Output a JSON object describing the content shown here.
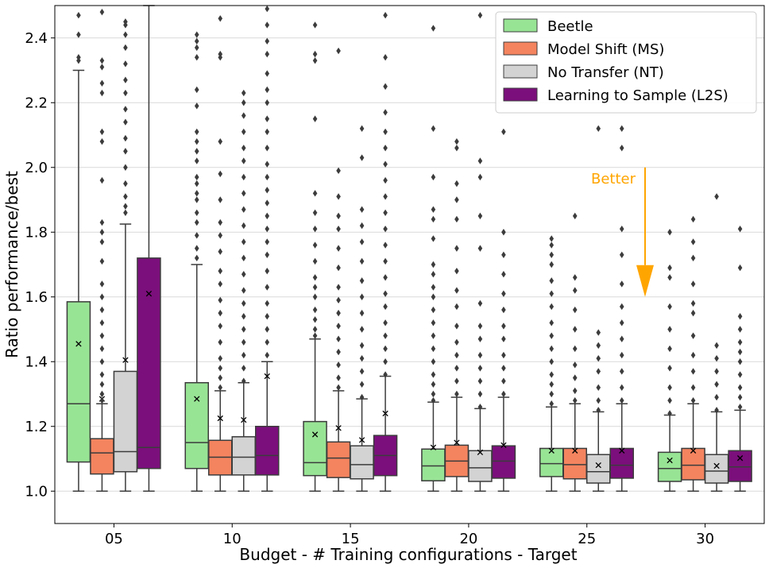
{
  "chart_data": {
    "type": "box",
    "xlabel": "Budget - # Training configurations - Target",
    "ylabel": "Ratio performance/best",
    "ylim": [
      0.9,
      2.5
    ],
    "yticks": [
      1.0,
      1.2,
      1.4,
      1.6,
      1.8,
      2.0,
      2.2,
      2.4
    ],
    "ytick_labels": [
      "1.0",
      "1.2",
      "1.4",
      "1.6",
      "1.8",
      "2.0",
      "2.2",
      "2.4"
    ],
    "grid": "horizontal",
    "legend_position": "top-right",
    "categories": [
      "05",
      "10",
      "15",
      "20",
      "25",
      "30"
    ],
    "colors": {
      "Beetle": "#98e495",
      "Model Shift (MS)": "#f4845f",
      "No Transfer (NT)": "#d3d3d3",
      "Learning to Sample (L2S)": "#7b0f7b",
      "annotation": "#ffa500"
    },
    "series": [
      {
        "name": "Beetle",
        "boxes": [
          {
            "whislo": 1.0,
            "q1": 1.09,
            "med": 1.27,
            "q3": 1.585,
            "whishi": 2.3,
            "mean": 1.455,
            "fliers": [
              2.33,
              2.34,
              2.41,
              2.47
            ]
          },
          {
            "whislo": 1.0,
            "q1": 1.07,
            "med": 1.15,
            "q3": 1.335,
            "whishi": 1.7,
            "mean": 1.285,
            "fliers": [
              1.72,
              1.75,
              1.79,
              1.83,
              1.86,
              1.9,
              1.92,
              1.95,
              1.97,
              2.02,
              2.05,
              2.08,
              2.11,
              2.19,
              2.24,
              2.34,
              2.37,
              2.39,
              2.41
            ]
          },
          {
            "whislo": 1.0,
            "q1": 1.048,
            "med": 1.088,
            "q3": 1.215,
            "whishi": 1.47,
            "mean": 1.175,
            "fliers": [
              1.48,
              1.5,
              1.53,
              1.56,
              1.6,
              1.63,
              1.66,
              1.71,
              1.76,
              1.81,
              1.86,
              1.92,
              2.15,
              2.33,
              2.35,
              2.44
            ]
          },
          {
            "whislo": 1.0,
            "q1": 1.032,
            "med": 1.078,
            "q3": 1.13,
            "whishi": 1.275,
            "mean": 1.135,
            "fliers": [
              1.28,
              1.3,
              1.33,
              1.36,
              1.4,
              1.44,
              1.48,
              1.52,
              1.56,
              1.6,
              1.63,
              1.67,
              1.7,
              1.78,
              1.84,
              1.87,
              1.97,
              2.12,
              2.43
            ]
          },
          {
            "whislo": 1.0,
            "q1": 1.045,
            "med": 1.085,
            "q3": 1.132,
            "whishi": 1.26,
            "mean": 1.125,
            "fliers": [
              1.27,
              1.3,
              1.33,
              1.36,
              1.4,
              1.44,
              1.48,
              1.52,
              1.57,
              1.61,
              1.65,
              1.7,
              1.73,
              1.76,
              1.78
            ]
          },
          {
            "whislo": 1.0,
            "q1": 1.03,
            "med": 1.07,
            "q3": 1.12,
            "whishi": 1.235,
            "mean": 1.095,
            "fliers": [
              1.24,
              1.28,
              1.32,
              1.38,
              1.44,
              1.5,
              1.57,
              1.66,
              1.69,
              1.8
            ]
          }
        ]
      },
      {
        "name": "Model Shift (MS)",
        "boxes": [
          {
            "whislo": 1.0,
            "q1": 1.053,
            "med": 1.118,
            "q3": 1.162,
            "whishi": 1.27,
            "mean": 1.285,
            "fliers": [
              1.28,
              1.3,
              1.33,
              1.36,
              1.4,
              1.44,
              1.48,
              1.52,
              1.56,
              1.6,
              1.64,
              1.71,
              1.77,
              1.8,
              1.83,
              1.96,
              2.08,
              2.11,
              2.23,
              2.26,
              2.31,
              2.33,
              2.48
            ]
          },
          {
            "whislo": 1.0,
            "q1": 1.05,
            "med": 1.105,
            "q3": 1.157,
            "whishi": 1.31,
            "mean": 1.225,
            "fliers": [
              1.32,
              1.35,
              1.38,
              1.41,
              1.46,
              1.51,
              1.55,
              1.59,
              1.64,
              1.68,
              1.74,
              1.79,
              1.83,
              1.9,
              1.98,
              2.08,
              2.34,
              2.35,
              2.46
            ]
          },
          {
            "whislo": 1.0,
            "q1": 1.042,
            "med": 1.102,
            "q3": 1.152,
            "whishi": 1.31,
            "mean": 1.195,
            "fliers": [
              1.32,
              1.35,
              1.39,
              1.43,
              1.47,
              1.51,
              1.55,
              1.59,
              1.63,
              1.69,
              1.75,
              1.81,
              1.85,
              1.91,
              1.99,
              2.36
            ]
          },
          {
            "whislo": 1.0,
            "q1": 1.045,
            "med": 1.093,
            "q3": 1.142,
            "whishi": 1.29,
            "mean": 1.15,
            "fliers": [
              1.3,
              1.34,
              1.38,
              1.42,
              1.46,
              1.51,
              1.57,
              1.62,
              1.68,
              1.75,
              1.84,
              1.9,
              1.95,
              2.06,
              2.08
            ]
          },
          {
            "whislo": 1.0,
            "q1": 1.038,
            "med": 1.082,
            "q3": 1.132,
            "whishi": 1.27,
            "mean": 1.125,
            "fliers": [
              1.28,
              1.31,
              1.35,
              1.39,
              1.44,
              1.5,
              1.56,
              1.62,
              1.66,
              1.85
            ]
          },
          {
            "whislo": 1.0,
            "q1": 1.035,
            "med": 1.08,
            "q3": 1.132,
            "whishi": 1.27,
            "mean": 1.125,
            "fliers": [
              1.28,
              1.32,
              1.37,
              1.42,
              1.48,
              1.55,
              1.58,
              1.64,
              1.72,
              1.77,
              1.84
            ]
          }
        ]
      },
      {
        "name": "No Transfer (NT)",
        "boxes": [
          {
            "whislo": 1.0,
            "q1": 1.06,
            "med": 1.122,
            "q3": 1.37,
            "whishi": 1.825,
            "mean": 1.405,
            "fliers": [
              1.86,
              1.88,
              1.91,
              1.95,
              2.0,
              2.05,
              2.09,
              2.14,
              2.18,
              2.23,
              2.27,
              2.32,
              2.37,
              2.41,
              2.44,
              2.45
            ]
          },
          {
            "whislo": 1.0,
            "q1": 1.05,
            "med": 1.105,
            "q3": 1.168,
            "whishi": 1.335,
            "mean": 1.22,
            "fliers": [
              1.34,
              1.38,
              1.42,
              1.46,
              1.5,
              1.54,
              1.58,
              1.62,
              1.67,
              1.72,
              1.77,
              1.82,
              1.87,
              1.92,
              1.97,
              2.02,
              2.06,
              2.11,
              2.16,
              2.2,
              2.23
            ]
          },
          {
            "whislo": 1.0,
            "q1": 1.038,
            "med": 1.082,
            "q3": 1.14,
            "whishi": 1.285,
            "mean": 1.158,
            "fliers": [
              1.29,
              1.33,
              1.37,
              1.41,
              1.45,
              1.5,
              1.55,
              1.6,
              1.65,
              1.71,
              1.77,
              1.82,
              1.87,
              2.03,
              2.12
            ]
          },
          {
            "whislo": 1.0,
            "q1": 1.03,
            "med": 1.072,
            "q3": 1.125,
            "whishi": 1.255,
            "mean": 1.12,
            "fliers": [
              1.26,
              1.3,
              1.34,
              1.38,
              1.42,
              1.47,
              1.51,
              1.58,
              1.75,
              1.85,
              1.97,
              2.02,
              2.47
            ]
          },
          {
            "whislo": 1.0,
            "q1": 1.025,
            "med": 1.06,
            "q3": 1.113,
            "whishi": 1.245,
            "mean": 1.08,
            "fliers": [
              1.25,
              1.28,
              1.32,
              1.37,
              1.41,
              1.45,
              1.49,
              2.12
            ]
          },
          {
            "whislo": 1.0,
            "q1": 1.025,
            "med": 1.062,
            "q3": 1.113,
            "whishi": 1.245,
            "mean": 1.078,
            "fliers": [
              1.25,
              1.29,
              1.33,
              1.37,
              1.41,
              1.45,
              1.91
            ]
          }
        ]
      },
      {
        "name": "Learning to Sample (L2S)",
        "boxes": [
          {
            "whislo": 1.0,
            "q1": 1.07,
            "med": 1.135,
            "q3": 1.72,
            "whishi": 2.5,
            "mean": 1.61,
            "fliers": []
          },
          {
            "whislo": 1.0,
            "q1": 1.05,
            "med": 1.11,
            "q3": 1.2,
            "whishi": 1.4,
            "mean": 1.355,
            "fliers": [
              1.42,
              1.46,
              1.5,
              1.54,
              1.58,
              1.63,
              1.68,
              1.73,
              1.77,
              1.81,
              1.85,
              1.89,
              1.93,
              1.97,
              2.01,
              2.06,
              2.11,
              2.15,
              2.2,
              2.24,
              2.29,
              2.35,
              2.39,
              2.44,
              2.49
            ]
          },
          {
            "whislo": 1.0,
            "q1": 1.048,
            "med": 1.11,
            "q3": 1.172,
            "whishi": 1.355,
            "mean": 1.24,
            "fliers": [
              1.36,
              1.4,
              1.44,
              1.48,
              1.52,
              1.57,
              1.61,
              1.66,
              1.71,
              1.76,
              1.81,
              1.86,
              1.91,
              1.96,
              2.01,
              2.06,
              2.11,
              2.17,
              2.25,
              2.34,
              2.47
            ]
          },
          {
            "whislo": 1.0,
            "q1": 1.04,
            "med": 1.093,
            "q3": 1.14,
            "whishi": 1.29,
            "mean": 1.142,
            "fliers": [
              1.3,
              1.34,
              1.38,
              1.42,
              1.47,
              1.51,
              1.56,
              1.61,
              1.67,
              1.73,
              1.8,
              2.11
            ]
          },
          {
            "whislo": 1.0,
            "q1": 1.04,
            "med": 1.08,
            "q3": 1.132,
            "whishi": 1.27,
            "mean": 1.125,
            "fliers": [
              1.28,
              1.32,
              1.37,
              1.42,
              1.47,
              1.52,
              1.57,
              1.64,
              1.73,
              1.81,
              2.06,
              2.12
            ]
          },
          {
            "whislo": 1.0,
            "q1": 1.03,
            "med": 1.075,
            "q3": 1.125,
            "whishi": 1.25,
            "mean": 1.102,
            "fliers": [
              1.26,
              1.29,
              1.32,
              1.36,
              1.4,
              1.43,
              1.46,
              1.5,
              1.54,
              1.69,
              1.81
            ]
          }
        ]
      }
    ],
    "annotation": {
      "text": "Better",
      "arrow_from_y": 2.0,
      "arrow_to_y": 1.6
    }
  }
}
